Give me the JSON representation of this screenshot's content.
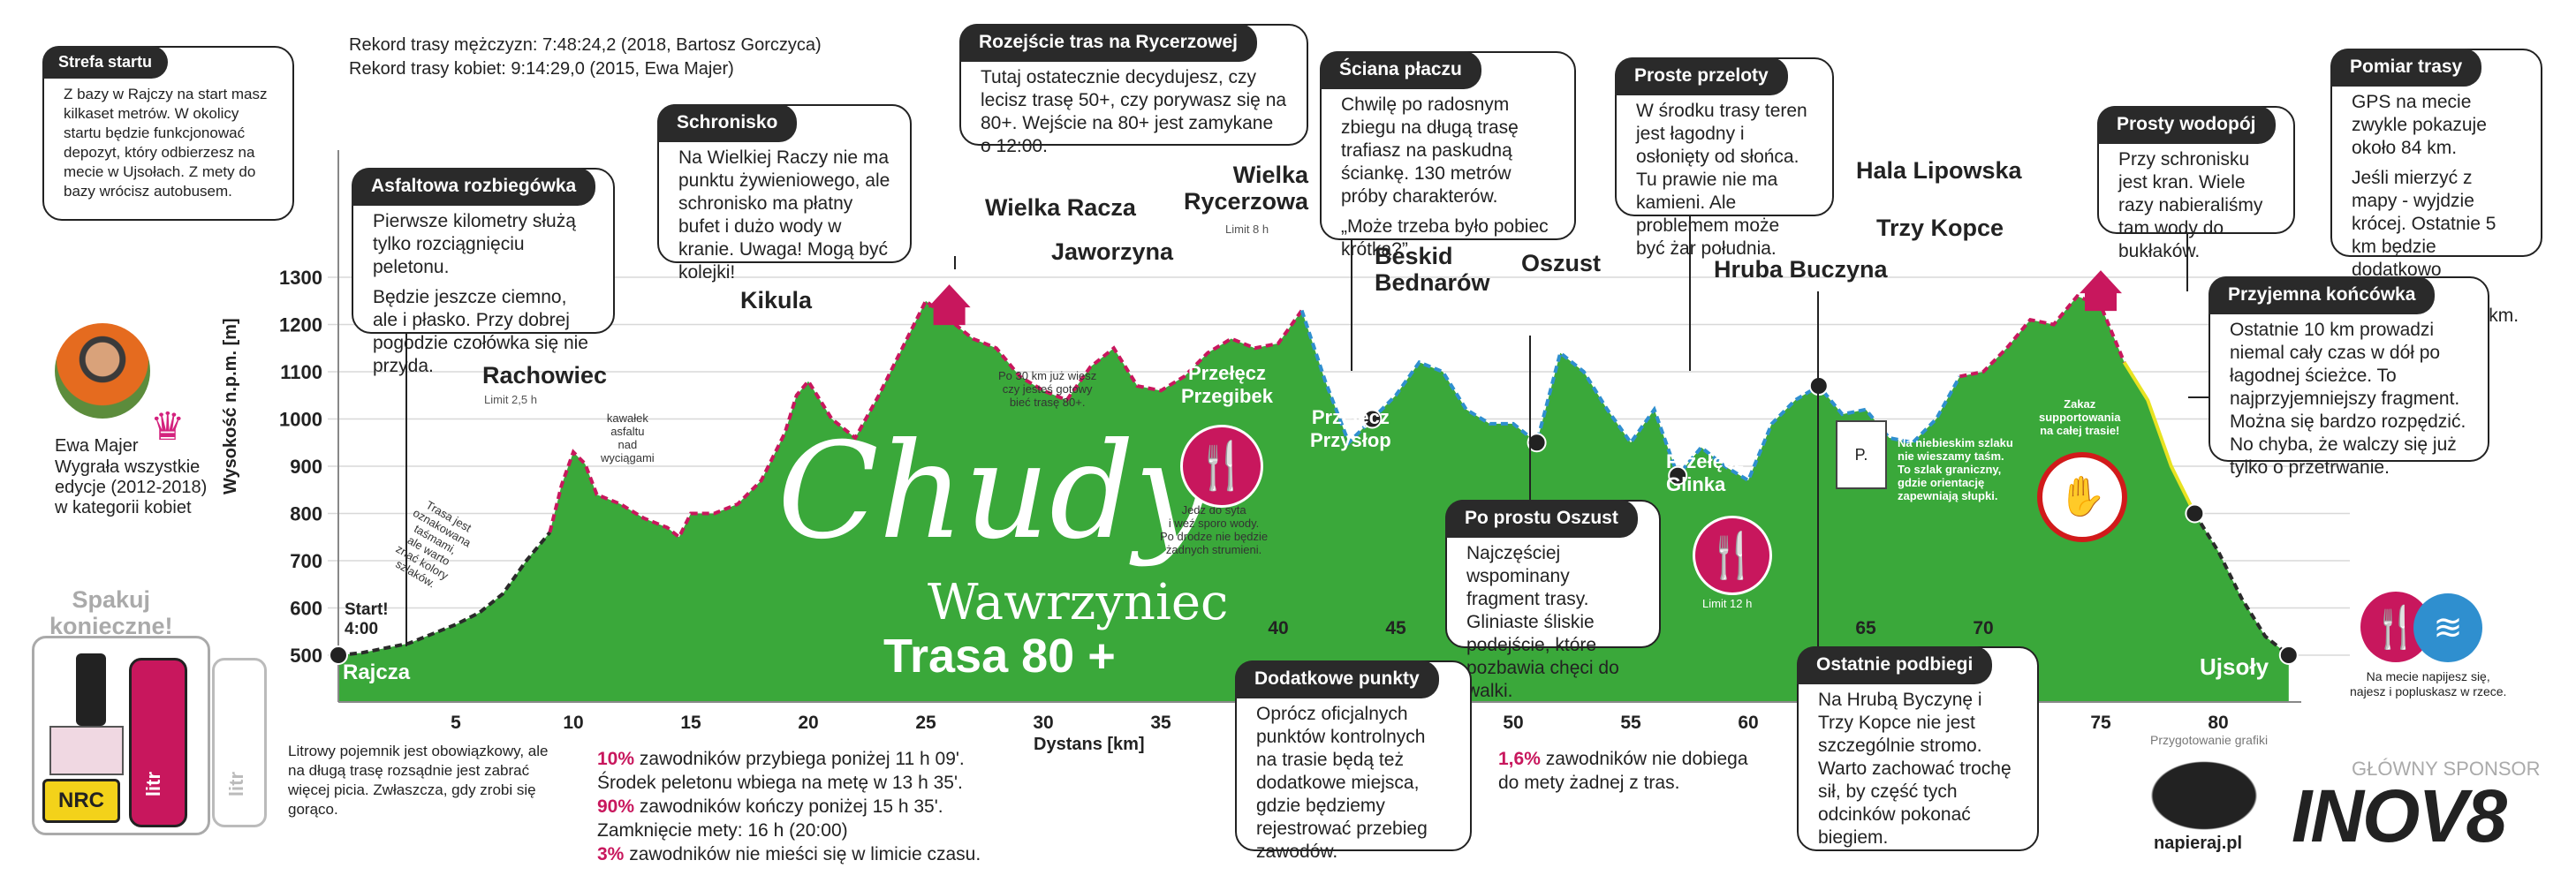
{
  "chart_data": {
    "type": "area",
    "title": "Trasa 80 +",
    "xlabel": "Dystans [km]",
    "ylabel": "Wysokość n.p.m. [m]",
    "xlim": [
      0,
      84
    ],
    "ylim": [
      500,
      1300
    ],
    "xticks": [
      5,
      10,
      15,
      20,
      25,
      30,
      35,
      40,
      45,
      50,
      55,
      60,
      65,
      70,
      75,
      80
    ],
    "yticks": [
      500,
      600,
      700,
      800,
      900,
      1000,
      1100,
      1200,
      1300
    ],
    "profile": [
      [
        0,
        500
      ],
      [
        1,
        505
      ],
      [
        2,
        515
      ],
      [
        3,
        525
      ],
      [
        4,
        545
      ],
      [
        5,
        565
      ],
      [
        6,
        590
      ],
      [
        7,
        630
      ],
      [
        8,
        700
      ],
      [
        9,
        760
      ],
      [
        9.5,
        860
      ],
      [
        10,
        930
      ],
      [
        10.5,
        905
      ],
      [
        11,
        840
      ],
      [
        12,
        820
      ],
      [
        13,
        790
      ],
      [
        14,
        770
      ],
      [
        14.5,
        750
      ],
      [
        15,
        800
      ],
      [
        16,
        800
      ],
      [
        17,
        820
      ],
      [
        18,
        870
      ],
      [
        19,
        970
      ],
      [
        19.5,
        1050
      ],
      [
        20,
        1080
      ],
      [
        21,
        1000
      ],
      [
        22,
        960
      ],
      [
        23,
        1050
      ],
      [
        24,
        1150
      ],
      [
        25,
        1250
      ],
      [
        26,
        1210
      ],
      [
        27,
        1170
      ],
      [
        28,
        1150
      ],
      [
        29,
        1090
      ],
      [
        30,
        1060
      ],
      [
        31,
        1040
      ],
      [
        32,
        1110
      ],
      [
        33,
        1150
      ],
      [
        34,
        1070
      ],
      [
        35,
        1060
      ],
      [
        36,
        1090
      ],
      [
        37,
        1140
      ],
      [
        38,
        1170
      ],
      [
        39,
        1150
      ],
      [
        40,
        1160
      ],
      [
        41,
        1230
      ],
      [
        42,
        1080
      ],
      [
        43,
        950
      ],
      [
        44,
        1000
      ],
      [
        45,
        1050
      ],
      [
        46,
        1120
      ],
      [
        47,
        1100
      ],
      [
        48,
        1020
      ],
      [
        49,
        990
      ],
      [
        50,
        990
      ],
      [
        51,
        950
      ],
      [
        52,
        1140
      ],
      [
        53,
        1100
      ],
      [
        54,
        1020
      ],
      [
        55,
        950
      ],
      [
        56,
        1020
      ],
      [
        57,
        880
      ],
      [
        58,
        940
      ],
      [
        59,
        900
      ],
      [
        60,
        870
      ],
      [
        61,
        990
      ],
      [
        62,
        1040
      ],
      [
        63,
        1070
      ],
      [
        64,
        1010
      ],
      [
        65,
        1020
      ],
      [
        66,
        960
      ],
      [
        67,
        950
      ],
      [
        68,
        1000
      ],
      [
        69,
        1090
      ],
      [
        70,
        1100
      ],
      [
        71,
        1150
      ],
      [
        72,
        1210
      ],
      [
        73,
        1200
      ],
      [
        74,
        1260
      ],
      [
        75,
        1240
      ],
      [
        76,
        1120
      ],
      [
        77,
        1040
      ],
      [
        78,
        900
      ],
      [
        79,
        800
      ],
      [
        80,
        720
      ],
      [
        81,
        620
      ],
      [
        82,
        540
      ],
      [
        83,
        500
      ]
    ],
    "segment_colors": {
      "red_dashed": "#c8175d",
      "blue_dashed": "#2f8fcf",
      "yellow": "#e8e321",
      "area": "#3aa83a"
    },
    "peaks": [
      {
        "label": "Rachowiec",
        "km": 10,
        "limit": "Limit 2,5 h"
      },
      {
        "label": "Kikula",
        "km": 20
      },
      {
        "label": "Wielka Racza",
        "km": 26
      },
      {
        "label": "Jaworzyna",
        "km": 33
      },
      {
        "label": "Wielka\nRycerzowa",
        "km": 41,
        "limit": "Limit 8 h"
      },
      {
        "label": "Beskid\nBednarów",
        "km": 47
      },
      {
        "label": "Oszust",
        "km": 52
      },
      {
        "label": "Hruba Buczyna",
        "km": 63
      },
      {
        "label": "Trzy Kopce",
        "km": 72
      },
      {
        "label": "Hala Lipowska",
        "km": 75
      }
    ],
    "passes": [
      {
        "label": "Przełęcz\nPrzegibek",
        "km": 38
      },
      {
        "label": "Przełęcz\nPrzysłop",
        "km": 43
      },
      {
        "label": "Przełęcz\nGlinka",
        "km": 57,
        "limit": "Limit 12 h"
      }
    ],
    "start": {
      "label": "Rajcza",
      "time_label": "Start!\n4:00"
    },
    "finish": {
      "label": "Ujsoły"
    },
    "inline_notes": {
      "asphalt": "kawałek\nasfaltu\nnad\nwyciągami",
      "marked": "Trasa jest\noznakowana\ntaśmami,\nale warto\nznać kolory\nszlaków.",
      "eat_30": "Po 30 km już wiesz\nczy jesteś gotowy\nbieć trasę 80+.",
      "eat_sign": "Jedz do syta\ni weź sporo wody.\nPo drodze nie będzie\nżadnych strumieni.",
      "border": "Na niebieskim szlaku\nnie wieszamy taśm.\nTo szlak graniczny,\ngdzie orientację\nzapewniają słupki.",
      "no_support": "Zakaz\nsupportowania\nna całej trasie!",
      "border_post": "P."
    }
  },
  "records": {
    "men": "Rekord trasy mężczyzn: 7:48:24,2 (2018, Bartosz Gorczyca)",
    "women": "Rekord trasy kobiet: 9:14:29,0 (2015, Ewa Majer)"
  },
  "logo": {
    "main": "Chudy",
    "sub": "Wawrzyniec"
  },
  "boxes": {
    "strefa": {
      "title": "Strefa startu",
      "body": "Z bazy w Rajczy na start masz kilkaset metrów. W okolicy startu będzie funkcjonować depozyt, który odbierzesz na mecie w Ujsołach. Z mety do bazy wrócisz autobusem."
    },
    "asfaltowa": {
      "title": "Asfaltowa rozbiegówka",
      "p1": "Pierwsze kilometry służą tylko rozciągnięciu peletonu.",
      "p2": "Będzie jeszcze ciemno, ale i płasko. Przy dobrej pogodzie czołówka się nie przyda."
    },
    "schronisko": {
      "title": "Schronisko",
      "body": "Na Wielkiej Raczy nie ma punktu żywieniowego, ale schronisko ma płatny bufet i dużo wody w kranie. Uwaga! Mogą być kolejki!"
    },
    "rozejscie": {
      "title": "Rozejście tras na Rycerzowej",
      "body": "Tutaj ostatecznie decydujesz, czy lecisz trasę 50+, czy porywasz się na 80+. Wejście na 80+ jest zamykane o 12:00."
    },
    "sciana": {
      "title": "Ściana płaczu",
      "p1": "Chwilę po radosnym zbiegu na długą trasę trafiasz na paskudną ściankę. 130 metrów próby charakterów.",
      "p2": "„Może trzeba było pobiec krótką?”"
    },
    "proste": {
      "title": "Proste przeloty",
      "body": "W środku trasy teren jest łagodny i osłonięty od słońca. Tu prawie nie ma kamieni. Ale problemem może być żar południa."
    },
    "wodopoj": {
      "title": "Prosty wodopój",
      "body": "Przy schronisku jest kran. Wiele razy nabieraliśmy tam wody do bukłaków."
    },
    "pomiar": {
      "title": "Pomiar trasy",
      "p1": "GPS na mecie zwykle pokazuje około 84 km.",
      "p2": "Jeśli mierzyć z mapy - wyjdzie krócej. Ostatnie 5 km będzie dodatkowo oznaczane tabliczkami co 1 km."
    },
    "koncowka": {
      "title": "Przyjemna końcówka",
      "body": "Ostatnie 10 km prowadzi niemal cały czas w dół po łagodnej ścieżce. To najprzyjemniejszy fragment. Można się bardzo rozpędzić. No chyba, że walczy się już tylko o przetrwanie."
    },
    "oszust": {
      "title": "Po prostu Oszust",
      "body": "Najczęściej wspominany fragment trasy. Gliniaste śliskie podejście, które pozbawia chęci do walki."
    },
    "dodatkowe": {
      "title": "Dodatkowe punkty",
      "body": "Oprócz oficjalnych punktów kontrolnych na trasie będą też dodatkowe miejsca, gdzie będziemy rejestrować przebieg zawodów."
    },
    "ostatnie": {
      "title": "Ostatnie podbiegi",
      "body": "Na Hrubą Byczynę i Trzy Kopce nie jest szczególnie stromo. Warto zachować trochę sił, by część tych odcinków pokonać biegiem."
    }
  },
  "winner": {
    "name": "Ewa Majer",
    "desc": "Wygrała wszystkie edycje (2012-2018) w kategorii kobiet"
  },
  "pack": {
    "title": "Spakuj\nkonieczne!",
    "nrc": "NRC",
    "litr": "litr",
    "note": "Litrowy pojemnik jest obowiązkowy, ale na długą trasę rozsądnie jest zabrać więcej picia. Zwłaszcza, gdy zrobi się gorąco."
  },
  "stats": {
    "s1_pct": "10%",
    "s1": " zawodników przybiega poniżej 11 h 09'.",
    "s2": "Środek peletonu wbiega na metę w 13 h 35'.",
    "s3_pct": "90%",
    "s3": " zawodników kończy poniżej  15 h 35'.",
    "s4": "Zamknięcie mety: 16 h (20:00)",
    "s5_pct": "3%",
    "s5": " zawodników nie mieści się w limicie czasu.",
    "s6_pct": "1,6%",
    "s6": " zawodników nie dobiega\ndo mety żadnej z tras."
  },
  "footer": {
    "finish_note": "Na mecie napijesz się,\nnajesz i popluskasz w rzece.",
    "graphics": "Przygotowanie grafiki",
    "napieraj": "napieraj.pl",
    "sponsor_label": "GŁÓWNY SPONSOR",
    "sponsor": "INOV8"
  }
}
